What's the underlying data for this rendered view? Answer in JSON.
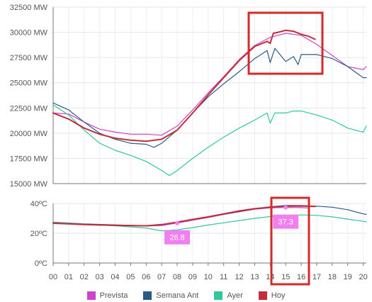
{
  "chart_data": [
    {
      "type": "line",
      "unit": "MW",
      "y_ticks": [
        "15000 MW",
        "17500 MW",
        "20000 MW",
        "22500 MW",
        "25000 MW",
        "27500 MW",
        "30000 MW",
        "32500 MW"
      ],
      "ylim": [
        15000,
        32500
      ],
      "xlim": [
        0,
        20.2
      ],
      "series": [
        {
          "key": "prevista",
          "name": "Prevista",
          "color": "#cc44cc",
          "x": [
            0,
            1,
            2,
            3,
            4,
            5,
            6,
            7,
            8,
            9,
            10,
            11,
            12,
            13,
            14,
            15,
            16,
            17,
            18,
            19,
            20,
            20.2
          ],
          "y": [
            22000,
            21900,
            21100,
            20400,
            20100,
            19900,
            19900,
            19800,
            20700,
            22300,
            24000,
            25600,
            27300,
            28700,
            29500,
            29900,
            29700,
            28800,
            27700,
            26600,
            26300,
            26600
          ]
        },
        {
          "key": "semana_ant",
          "name": "Semana Ant",
          "color": "#2d5a85",
          "x": [
            0,
            1,
            2,
            3,
            4,
            5,
            6,
            6.5,
            7,
            8,
            9,
            10,
            11,
            12,
            13,
            13.8,
            14,
            14.3,
            15,
            15.5,
            15.8,
            16,
            17,
            18,
            19,
            20,
            20.2
          ],
          "y": [
            23000,
            22300,
            21100,
            20000,
            19400,
            19000,
            18900,
            18600,
            19000,
            20300,
            22000,
            23600,
            24900,
            26100,
            27400,
            28200,
            27000,
            28400,
            27100,
            27600,
            26800,
            27800,
            27800,
            27400,
            26600,
            25500,
            25500
          ]
        },
        {
          "key": "ayer",
          "name": "Ayer",
          "color": "#2ec89a",
          "x": [
            0,
            1,
            2,
            3,
            4,
            5,
            6,
            7,
            7.5,
            8,
            9,
            10,
            11,
            12,
            13,
            13.8,
            14,
            14.3,
            15,
            15.5,
            16,
            17,
            18,
            19,
            20,
            20.2
          ],
          "y": [
            22800,
            21800,
            20300,
            19000,
            18300,
            17800,
            17200,
            16300,
            15800,
            16300,
            17500,
            18600,
            19600,
            20500,
            21300,
            22000,
            21000,
            22000,
            22000,
            22200,
            22200,
            21800,
            21300,
            20500,
            20100,
            20700
          ]
        },
        {
          "key": "hoy",
          "name": "Hoy",
          "color": "#c22e3c",
          "x": [
            0,
            1,
            2,
            3,
            4,
            5,
            6,
            7,
            8,
            9,
            10,
            11,
            12,
            13,
            13.8,
            14,
            14.2,
            14.5,
            15,
            15.5,
            16,
            16.5,
            16.9
          ],
          "y": [
            22000,
            21400,
            20500,
            19900,
            19500,
            19300,
            19200,
            19400,
            20300,
            22000,
            23800,
            25500,
            27200,
            28600,
            29100,
            28900,
            29900,
            30000,
            30200,
            30100,
            29800,
            29600,
            29300
          ]
        }
      ]
    },
    {
      "type": "line",
      "unit": "ºC",
      "y_ticks": [
        "0ºC",
        "20ºC",
        "40ºC"
      ],
      "ylim": [
        0,
        40
      ],
      "xlim": [
        0,
        20.2
      ],
      "series": [
        {
          "key": "prevista",
          "name": "Prevista",
          "color": "#cc44cc",
          "x": [
            0,
            2,
            4,
            6,
            7,
            8,
            9,
            10,
            11,
            12,
            13,
            14,
            15,
            16,
            16.5
          ],
          "y": [
            26.5,
            25.8,
            25.2,
            24.8,
            25.2,
            26.8,
            28.7,
            30.5,
            32.6,
            34.5,
            36.1,
            37.0,
            37.3,
            37.2,
            37.0
          ]
        },
        {
          "key": "semana_ant",
          "name": "Semana Ant",
          "color": "#2d5a85",
          "x": [
            0,
            2,
            4,
            6,
            7,
            8,
            9,
            10,
            11,
            12,
            13,
            14,
            15,
            16,
            17,
            18,
            19,
            20,
            20.2
          ],
          "y": [
            27.5,
            26.3,
            25.6,
            25.0,
            25.5,
            27.5,
            29.3,
            31.0,
            32.8,
            34.5,
            36.3,
            37.8,
            38.6,
            38.6,
            38.2,
            37.5,
            35.8,
            33.0,
            32.6
          ]
        },
        {
          "key": "ayer",
          "name": "Ayer",
          "color": "#2ec89a",
          "x": [
            0,
            2,
            4,
            6,
            7,
            8,
            9,
            10,
            11,
            12,
            13,
            14,
            15,
            16,
            17,
            18,
            19,
            20,
            20.2
          ],
          "y": [
            27.5,
            26.0,
            25.0,
            23.5,
            21.6,
            22.3,
            23.8,
            25.5,
            27.0,
            28.5,
            30.0,
            31.2,
            32.0,
            32.3,
            32.0,
            31.0,
            29.5,
            28.0,
            27.6
          ]
        },
        {
          "key": "hoy",
          "name": "Hoy",
          "color": "#c22e3c",
          "x": [
            0,
            2,
            4,
            6,
            7,
            8,
            9,
            10,
            11,
            12,
            13,
            14,
            15,
            16,
            16.9
          ],
          "y": [
            26.8,
            25.8,
            25.3,
            25.0,
            25.8,
            27.5,
            29.3,
            31.0,
            33.0,
            35.0,
            36.5,
            37.5,
            38.1,
            38.3,
            38.0
          ]
        }
      ],
      "point_labels": [
        {
          "text": "26.8",
          "x": 8,
          "y": 26.8
        },
        {
          "text": "37.3",
          "x": 15,
          "y": 37.3
        }
      ]
    }
  ],
  "x_ticks": [
    "00",
    "01",
    "02",
    "03",
    "04",
    "05",
    "06",
    "07",
    "08",
    "09",
    "10",
    "11",
    "12",
    "13",
    "14",
    "15",
    "16",
    "17",
    "18",
    "19",
    "20"
  ],
  "highlight_color": "#d42a2a",
  "label_box_color": "#f080f0",
  "legend": [
    {
      "name": "Prevista",
      "color": "#cc44cc"
    },
    {
      "name": "Semana Ant",
      "color": "#2d5a85"
    },
    {
      "name": "Ayer",
      "color": "#2ec89a"
    },
    {
      "name": "Hoy",
      "color": "#c22e3c"
    }
  ]
}
